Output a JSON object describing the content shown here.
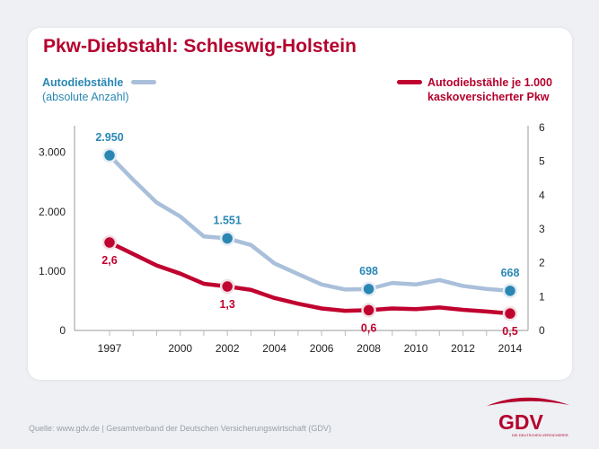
{
  "title": "Pkw-Diebstahl: Schleswig-Holstein",
  "legend": {
    "blue_line1": "Autodiebstähle",
    "blue_line2": "(absolute Anzahl)",
    "red_line1": "Autodiebstähle je 1.000",
    "red_line2": "kaskoversicherter Pkw"
  },
  "source": "Quelle: www.gdv.de | Gesamtverband der Deutschen Versicherungswirtschaft (GDV)",
  "logo": {
    "text": "GDV",
    "subtitle": "DIE DEUTSCHEN VERSICHERER"
  },
  "colors": {
    "blue_line": "#a9bfda",
    "blue_marker": "#2a87b3",
    "red": "#c0002f",
    "title": "#b5002d"
  },
  "chart_data": {
    "type": "line",
    "x": [
      1997,
      1998,
      1999,
      2000,
      2001,
      2002,
      2003,
      2004,
      2005,
      2006,
      2007,
      2008,
      2009,
      2010,
      2011,
      2012,
      2013,
      2014
    ],
    "x_ticks": [
      "1997",
      "2000",
      "2002",
      "2004",
      "2006",
      "2008",
      "2010",
      "2012",
      "2014"
    ],
    "y_left_ticks": [
      "0",
      "1.000",
      "2.000",
      "3.000"
    ],
    "y_right_ticks": [
      "0",
      "1",
      "2",
      "3",
      "4",
      "5",
      "6"
    ],
    "y_left_lim": [
      0,
      3450
    ],
    "y_right_lim": [
      0,
      6.05
    ],
    "grid": false,
    "legend_position": "top",
    "series": [
      {
        "name": "Autodiebstähle (absolute Anzahl)",
        "axis": "left",
        "values": [
          2950,
          2540,
          2155,
          1920,
          1585,
          1551,
          1440,
          1130,
          950,
          775,
          690,
          698,
          800,
          775,
          850,
          750,
          700,
          668
        ],
        "labeled_points": [
          {
            "x": 1997,
            "label": "2.950"
          },
          {
            "x": 2002,
            "label": "1.551"
          },
          {
            "x": 2008,
            "label": "698"
          },
          {
            "x": 2014,
            "label": "668"
          }
        ]
      },
      {
        "name": "Autodiebstähle je 1.000 kaskoversicherter Pkw",
        "axis": "right",
        "values": [
          2.6,
          2.26,
          1.92,
          1.68,
          1.38,
          1.3,
          1.2,
          0.96,
          0.79,
          0.65,
          0.58,
          0.6,
          0.65,
          0.63,
          0.68,
          0.61,
          0.56,
          0.5
        ],
        "labeled_points": [
          {
            "x": 1997,
            "label": "2,6"
          },
          {
            "x": 2002,
            "label": "1,3"
          },
          {
            "x": 2008,
            "label": "0,6"
          },
          {
            "x": 2014,
            "label": "0,5"
          }
        ]
      }
    ]
  }
}
